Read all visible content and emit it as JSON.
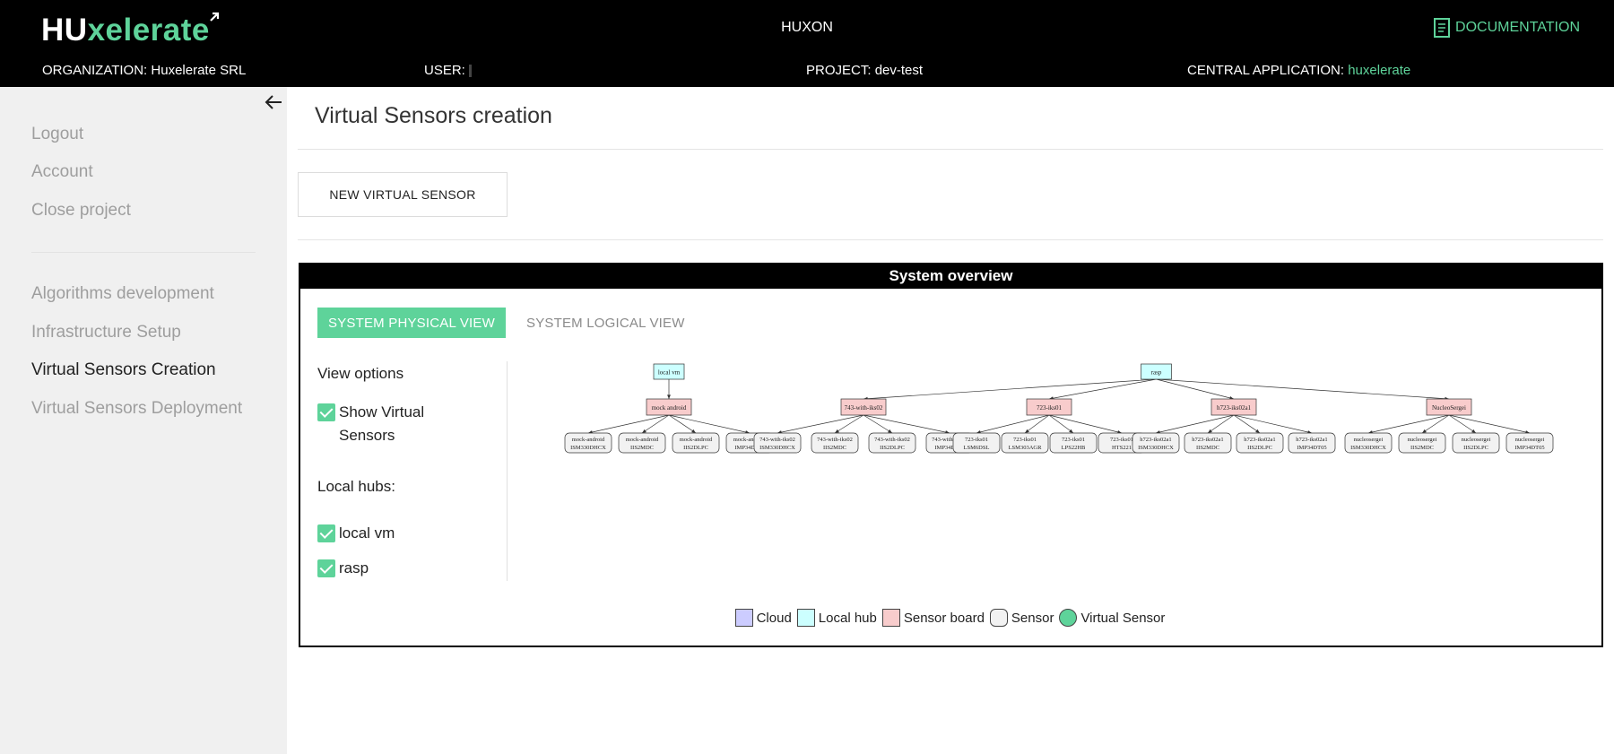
{
  "header": {
    "logo_part1": "HU",
    "logo_part2": "xelerate",
    "app_title": "HUXON",
    "documentation_label": "DOCUMENTATION",
    "organization_label": "ORGANIZATION:",
    "organization_value": "Huxelerate SRL",
    "user_label": "USER:",
    "project_label": "PROJECT:",
    "project_value": "dev-test",
    "central_app_label": "CENTRAL APPLICATION:",
    "central_app_value": "huxelerate"
  },
  "sidebar": {
    "account_items": [
      "Logout",
      "Account",
      "Close project"
    ],
    "nav_items": [
      "Algorithms development",
      "Infrastructure Setup",
      "Virtual Sensors Creation",
      "Virtual Sensors Deployment"
    ],
    "active_nav_index": 2
  },
  "main": {
    "title": "Virtual Sensors creation",
    "new_sensor_button": "NEW VIRTUAL SENSOR"
  },
  "overview": {
    "title": "System overview",
    "tabs": [
      "SYSTEM PHYSICAL VIEW",
      "SYSTEM LOGICAL VIEW"
    ],
    "view_options_label": "View options",
    "show_virtual_sensors_label": "Show Virtual Sensors",
    "local_hubs_label": "Local hubs:",
    "hubs": [
      "local vm",
      "rasp"
    ]
  },
  "graph": {
    "hubs": [
      {
        "label": "local vm",
        "boards": [
          0
        ]
      },
      {
        "label": "rasp",
        "boards": [
          1,
          2,
          3,
          4
        ]
      }
    ],
    "boards": [
      {
        "label": "mock android",
        "sensors": [
          [
            "mock-android",
            "ISM330DHCX"
          ],
          [
            "mock-android",
            "IIS2MDC"
          ],
          [
            "mock-android",
            "IIS2DLPC"
          ],
          [
            "mock-android",
            "IMP34DT05"
          ]
        ]
      },
      {
        "label": "743-with-iks02",
        "sensors": [
          [
            "743-with-iks02",
            "ISM330DHCX"
          ],
          [
            "743-with-iks02",
            "IIS2MDC"
          ],
          [
            "743-with-iks02",
            "IIS2DLPC"
          ],
          [
            "743-with-iks02",
            "IMP34DT05"
          ]
        ]
      },
      {
        "label": "723-iks01",
        "sensors": [
          [
            "723-iks01",
            "LSM6DSL"
          ],
          [
            "723-iks01",
            "LSM303AGR"
          ],
          [
            "723-iks01",
            "LPS22HB"
          ],
          [
            "723-iks01",
            "HTS221"
          ]
        ]
      },
      {
        "label": "h723-iks02a1",
        "sensors": [
          [
            "h723-iks02a1",
            "ISM330DHCX"
          ],
          [
            "h723-iks02a1",
            "IIS2MDC"
          ],
          [
            "h723-iks02a1",
            "IIS2DLPC"
          ],
          [
            "h723-iks02a1",
            "IMP34DT05"
          ]
        ]
      },
      {
        "label": "NucleoSergei",
        "sensors": [
          [
            "nucleosergei",
            "ISM330DHCX"
          ],
          [
            "nucleosergei",
            "IIS2MDC"
          ],
          [
            "nucleosergei",
            "IIS2DLPC"
          ],
          [
            "nucleosergei",
            "IMP34DT05"
          ]
        ]
      }
    ]
  },
  "legend": [
    {
      "label": "Cloud",
      "color": "#ccccff",
      "shape": "square"
    },
    {
      "label": "Local hub",
      "color": "#ccffff",
      "shape": "square"
    },
    {
      "label": "Sensor board",
      "color": "#f8cccc",
      "shape": "square"
    },
    {
      "label": "Sensor",
      "color": "#f2f2f2",
      "shape": "round"
    },
    {
      "label": "Virtual Sensor",
      "color": "#5ed39a",
      "shape": "circle"
    }
  ],
  "colors": {
    "accent": "#5ed39a",
    "hub_fill": "#ccffff",
    "board_fill": "#f8cccc",
    "sensor_fill": "#f2f2f2"
  }
}
